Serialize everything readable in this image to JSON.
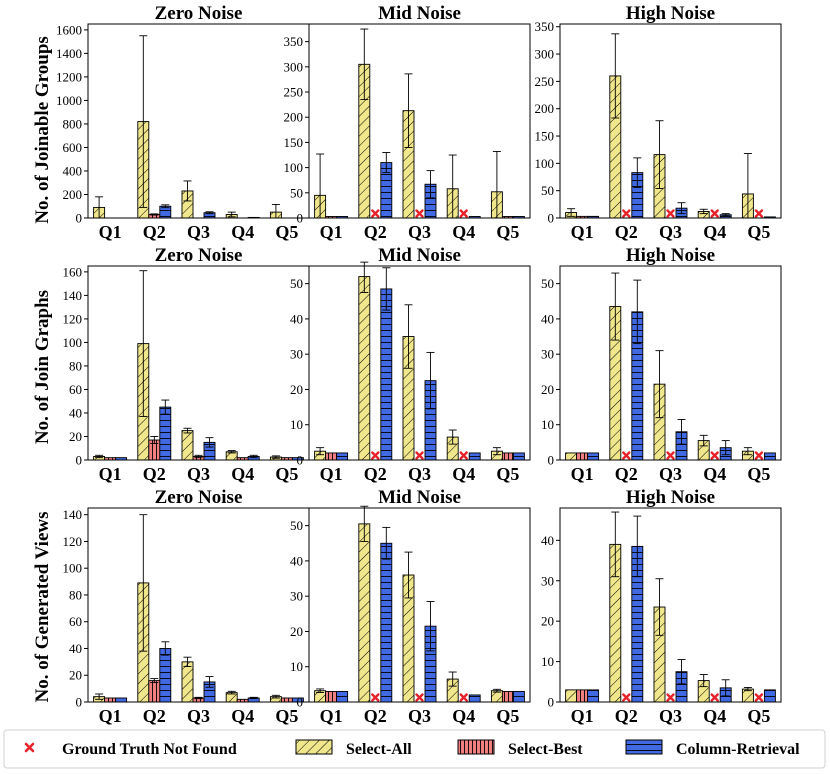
{
  "chart_data": {
    "type": "bar",
    "categories": [
      "Q1",
      "Q2",
      "Q3",
      "Q4",
      "Q5"
    ],
    "series_names": [
      "Select-All",
      "Select-Best",
      "Column-Retrieval"
    ],
    "series_colors": [
      "#f0e68c",
      "#f08080",
      "#4169e1"
    ],
    "missing_marker_color": "#e8222a",
    "legend": {
      "position": "bottom",
      "items": [
        "Ground Truth Not Found",
        "Select-All",
        "Select-Best",
        "Column-Retrieval"
      ]
    },
    "row_ylabels": [
      "No. of Joinable Groups",
      "No. of Join Graphs",
      "No. of Generated Views"
    ],
    "panels": [
      {
        "title": "Zero Noise",
        "row": 0,
        "col": 0,
        "ylim": [
          0,
          1650
        ],
        "yticks": [
          0,
          200,
          400,
          600,
          800,
          1000,
          1200,
          1400,
          1600
        ],
        "series": [
          {
            "name": "Select-All",
            "values": [
              90,
              820,
              230,
              30,
              50
            ],
            "errors": [
              90,
              730,
              85,
              20,
              65
            ]
          },
          {
            "name": "Select-Best",
            "values": [
              0,
              30,
              0,
              0,
              0
            ],
            "errors": [
              0,
              5,
              0,
              0,
              0
            ]
          },
          {
            "name": "Column-Retrieval",
            "values": [
              0,
              100,
              45,
              5,
              0
            ],
            "errors": [
              0,
              12,
              8,
              0,
              0
            ]
          }
        ],
        "missing": []
      },
      {
        "title": "Mid Noise",
        "row": 0,
        "col": 1,
        "ylim": [
          0,
          385
        ],
        "yticks": [
          0,
          50,
          100,
          150,
          200,
          250,
          300,
          350
        ],
        "series": [
          {
            "name": "Select-All",
            "values": [
              45,
              305,
              213,
              58,
              52
            ],
            "errors": [
              82,
              70,
              73,
              67,
              80
            ]
          },
          {
            "name": "Select-Best",
            "values": [
              3,
              0,
              0,
              0,
              3
            ],
            "errors": [
              0,
              0,
              0,
              0,
              0
            ]
          },
          {
            "name": "Column-Retrieval",
            "values": [
              3,
              110,
              67,
              3,
              3
            ],
            "errors": [
              0,
              20,
              27,
              0,
              0
            ]
          }
        ],
        "missing": [
          {
            "category": "Q2",
            "series": "Select-Best"
          },
          {
            "category": "Q3",
            "series": "Select-Best"
          },
          {
            "category": "Q4",
            "series": "Select-Best"
          }
        ]
      },
      {
        "title": "High Noise",
        "row": 0,
        "col": 2,
        "ylim": [
          0,
          355
        ],
        "yticks": [
          0,
          50,
          100,
          150,
          200,
          250,
          300,
          350
        ],
        "series": [
          {
            "name": "Select-All",
            "values": [
              10,
              260,
              116,
              12,
              44
            ],
            "errors": [
              7,
              77,
              62,
              4,
              74
            ]
          },
          {
            "name": "Select-Best",
            "values": [
              3,
              0,
              0,
              0,
              0
            ],
            "errors": [
              0,
              0,
              0,
              0,
              0
            ]
          },
          {
            "name": "Column-Retrieval",
            "values": [
              3,
              83,
              18,
              6,
              2
            ],
            "errors": [
              0,
              27,
              10,
              2,
              0
            ]
          }
        ],
        "missing": [
          {
            "category": "Q2",
            "series": "Select-Best"
          },
          {
            "category": "Q3",
            "series": "Select-Best"
          },
          {
            "category": "Q4",
            "series": "Select-Best"
          },
          {
            "category": "Q5",
            "series": "Select-Best"
          }
        ]
      },
      {
        "title": "Zero Noise",
        "row": 1,
        "col": 0,
        "ylim": [
          0,
          165
        ],
        "yticks": [
          0,
          20,
          40,
          60,
          80,
          100,
          120,
          140,
          160
        ],
        "series": [
          {
            "name": "Select-All",
            "values": [
              3,
              99,
              25,
              7,
              2.5
            ],
            "errors": [
              1,
              62,
              2,
              1,
              1
            ]
          },
          {
            "name": "Select-Best",
            "values": [
              2,
              17,
              3,
              2,
              2
            ],
            "errors": [
              0,
              3,
              1,
              0,
              0
            ]
          },
          {
            "name": "Column-Retrieval",
            "values": [
              2,
              45,
              15,
              3,
              2
            ],
            "errors": [
              0,
              6,
              4,
              1,
              0
            ]
          }
        ],
        "missing": []
      },
      {
        "title": "Mid Noise",
        "row": 1,
        "col": 1,
        "ylim": [
          0,
          55
        ],
        "yticks": [
          0,
          10,
          20,
          30,
          40,
          50
        ],
        "series": [
          {
            "name": "Select-All",
            "values": [
              2.5,
              52,
              35,
              6.5,
              2.5
            ],
            "errors": [
              1,
              4.5,
              9,
              2,
              1
            ]
          },
          {
            "name": "Select-Best",
            "values": [
              2,
              0,
              0,
              0,
              2
            ],
            "errors": [
              0,
              0,
              0,
              0,
              0
            ]
          },
          {
            "name": "Column-Retrieval",
            "values": [
              2,
              48.5,
              22.5,
              2,
              2
            ],
            "errors": [
              0,
              6,
              8,
              0,
              0
            ]
          }
        ],
        "missing": [
          {
            "category": "Q2",
            "series": "Select-Best"
          },
          {
            "category": "Q3",
            "series": "Select-Best"
          },
          {
            "category": "Q4",
            "series": "Select-Best"
          }
        ]
      },
      {
        "title": "High Noise",
        "row": 1,
        "col": 2,
        "ylim": [
          0,
          55
        ],
        "yticks": [
          0,
          10,
          20,
          30,
          40,
          50
        ],
        "series": [
          {
            "name": "Select-All",
            "values": [
              2,
              43.5,
              21.5,
              5.5,
              2.5
            ],
            "errors": [
              0,
              9.5,
              9.5,
              1.5,
              1
            ]
          },
          {
            "name": "Select-Best",
            "values": [
              2,
              0,
              0,
              0,
              0
            ],
            "errors": [
              0,
              0,
              0,
              0,
              0
            ]
          },
          {
            "name": "Column-Retrieval",
            "values": [
              2,
              42,
              8,
              3.5,
              2
            ],
            "errors": [
              0,
              9,
              3.5,
              2,
              0
            ]
          }
        ],
        "missing": [
          {
            "category": "Q2",
            "series": "Select-Best"
          },
          {
            "category": "Q3",
            "series": "Select-Best"
          },
          {
            "category": "Q4",
            "series": "Select-Best"
          },
          {
            "category": "Q5",
            "series": "Select-Best"
          }
        ]
      },
      {
        "title": "Zero Noise",
        "row": 2,
        "col": 0,
        "ylim": [
          0,
          145
        ],
        "yticks": [
          0,
          20,
          40,
          60,
          80,
          100,
          120,
          140
        ],
        "series": [
          {
            "name": "Select-All",
            "values": [
              4,
              89,
              30,
              7,
              4
            ],
            "errors": [
              2,
              51,
              3.5,
              1,
              1
            ]
          },
          {
            "name": "Select-Best",
            "values": [
              3,
              16,
              3,
              2,
              3
            ],
            "errors": [
              0,
              1.5,
              0.5,
              0,
              0
            ]
          },
          {
            "name": "Column-Retrieval",
            "values": [
              3,
              40,
              15,
              3,
              3
            ],
            "errors": [
              0,
              5,
              4,
              0.5,
              0
            ]
          }
        ],
        "missing": []
      },
      {
        "title": "Mid Noise",
        "row": 2,
        "col": 1,
        "ylim": [
          0,
          55
        ],
        "yticks": [
          0,
          10,
          20,
          30,
          40,
          50
        ],
        "series": [
          {
            "name": "Select-All",
            "values": [
              3.2,
              50.5,
              36,
              6.5,
              3.2
            ],
            "errors": [
              0.5,
              5,
              6.5,
              2,
              0.4
            ]
          },
          {
            "name": "Select-Best",
            "values": [
              3,
              0,
              0,
              0,
              3
            ],
            "errors": [
              0,
              0,
              0,
              0,
              0
            ]
          },
          {
            "name": "Column-Retrieval",
            "values": [
              3,
              45,
              21.5,
              2,
              3
            ],
            "errors": [
              0,
              4.5,
              7,
              0,
              0
            ]
          }
        ],
        "missing": [
          {
            "category": "Q2",
            "series": "Select-Best"
          },
          {
            "category": "Q3",
            "series": "Select-Best"
          },
          {
            "category": "Q4",
            "series": "Select-Best"
          }
        ]
      },
      {
        "title": "High Noise",
        "row": 2,
        "col": 2,
        "ylim": [
          0,
          48
        ],
        "yticks": [
          0,
          10,
          20,
          30,
          40
        ],
        "series": [
          {
            "name": "Select-All",
            "values": [
              3,
              39,
              23.5,
              5.3,
              3.2
            ],
            "errors": [
              0,
              8,
              7,
              1.5,
              0.4
            ]
          },
          {
            "name": "Select-Best",
            "values": [
              3,
              0,
              0,
              0,
              0
            ],
            "errors": [
              0,
              0,
              0,
              0,
              0
            ]
          },
          {
            "name": "Column-Retrieval",
            "values": [
              3,
              38.5,
              7.5,
              3.5,
              3
            ],
            "errors": [
              0,
              7.5,
              3,
              2,
              0
            ]
          }
        ],
        "missing": [
          {
            "category": "Q2",
            "series": "Select-Best"
          },
          {
            "category": "Q3",
            "series": "Select-Best"
          },
          {
            "category": "Q4",
            "series": "Select-Best"
          },
          {
            "category": "Q5",
            "series": "Select-Best"
          }
        ]
      }
    ]
  }
}
